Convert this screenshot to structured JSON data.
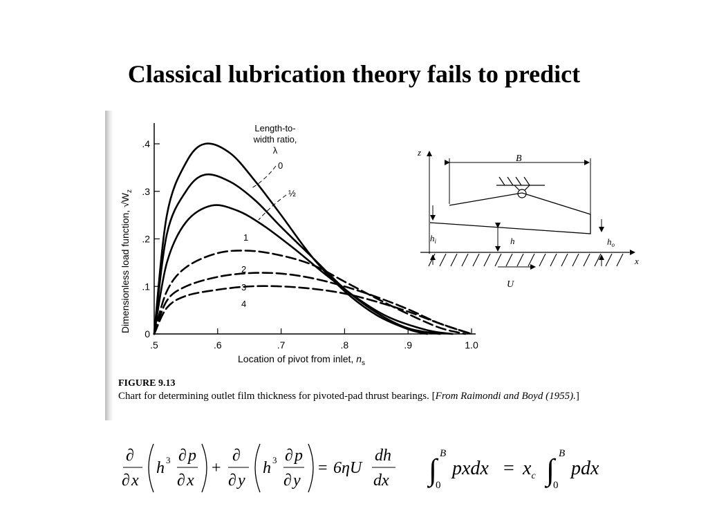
{
  "slide": {
    "title": "Classical lubrication theory fails to predict"
  },
  "chart_data": {
    "type": "line",
    "ylabel": "Dimensionless load function, √W",
    "ylabel_sub": "z",
    "xlabel_main": "Location of pivot from inlet, ",
    "xlabel_var": "n",
    "xlabel_sub": "s",
    "xlim": [
      0.5,
      1.0
    ],
    "ylim": [
      0,
      0.45
    ],
    "xticks": [
      ".5",
      ".6",
      ".7",
      ".8",
      ".9",
      "1.0"
    ],
    "yticks": [
      "0",
      ".1",
      ".2",
      ".3",
      ".4"
    ],
    "legend_title": [
      "Length-to-",
      "width ratio,",
      "λ"
    ],
    "series": [
      {
        "name": "0",
        "points": [
          [
            0.5,
            0
          ],
          [
            0.52,
            0.25
          ],
          [
            0.55,
            0.36
          ],
          [
            0.58,
            0.4
          ],
          [
            0.62,
            0.38
          ],
          [
            0.66,
            0.32
          ],
          [
            0.7,
            0.25
          ],
          [
            0.75,
            0.16
          ],
          [
            0.8,
            0.09
          ],
          [
            0.85,
            0.04
          ],
          [
            0.9,
            0.01
          ],
          [
            0.93,
            0
          ]
        ]
      },
      {
        "name": "½",
        "points": [
          [
            0.5,
            0
          ],
          [
            0.52,
            0.21
          ],
          [
            0.55,
            0.3
          ],
          [
            0.58,
            0.335
          ],
          [
            0.62,
            0.32
          ],
          [
            0.66,
            0.28
          ],
          [
            0.7,
            0.225
          ],
          [
            0.75,
            0.16
          ],
          [
            0.8,
            0.095
          ],
          [
            0.85,
            0.045
          ],
          [
            0.9,
            0.012
          ],
          [
            0.95,
            0
          ]
        ]
      },
      {
        "name": "1",
        "points": [
          [
            0.5,
            0
          ],
          [
            0.52,
            0.15
          ],
          [
            0.55,
            0.235
          ],
          [
            0.59,
            0.27
          ],
          [
            0.63,
            0.26
          ],
          [
            0.67,
            0.23
          ],
          [
            0.72,
            0.18
          ],
          [
            0.77,
            0.125
          ],
          [
            0.82,
            0.075
          ],
          [
            0.87,
            0.035
          ],
          [
            0.93,
            0.008
          ],
          [
            0.97,
            0
          ]
        ]
      },
      {
        "name": "2",
        "points": [
          [
            0.5,
            0
          ],
          [
            0.52,
            0.09
          ],
          [
            0.55,
            0.14
          ],
          [
            0.6,
            0.17
          ],
          [
            0.65,
            0.175
          ],
          [
            0.7,
            0.165
          ],
          [
            0.75,
            0.145
          ],
          [
            0.8,
            0.11
          ],
          [
            0.85,
            0.075
          ],
          [
            0.9,
            0.042
          ],
          [
            0.95,
            0.013
          ],
          [
            0.99,
            0
          ]
        ]
      },
      {
        "name": "3",
        "points": [
          [
            0.5,
            0
          ],
          [
            0.52,
            0.07
          ],
          [
            0.55,
            0.1
          ],
          [
            0.6,
            0.12
          ],
          [
            0.65,
            0.128
          ],
          [
            0.7,
            0.127
          ],
          [
            0.75,
            0.117
          ],
          [
            0.8,
            0.1
          ],
          [
            0.85,
            0.078
          ],
          [
            0.9,
            0.052
          ],
          [
            0.95,
            0.022
          ],
          [
            1.0,
            0
          ]
        ]
      },
      {
        "name": "4",
        "points": [
          [
            0.5,
            0
          ],
          [
            0.52,
            0.055
          ],
          [
            0.55,
            0.08
          ],
          [
            0.6,
            0.093
          ],
          [
            0.65,
            0.1
          ],
          [
            0.7,
            0.1
          ],
          [
            0.75,
            0.095
          ],
          [
            0.8,
            0.085
          ],
          [
            0.85,
            0.068
          ],
          [
            0.9,
            0.047
          ],
          [
            0.95,
            0.022
          ],
          [
            1.0,
            0
          ]
        ]
      }
    ]
  },
  "diagram": {
    "z_label": "z",
    "x_label": "x",
    "b_label": "B",
    "hi_label": "h",
    "hi_sub": "i",
    "h_label": "h",
    "ho_label": "h",
    "ho_sub": "o",
    "u_label": "U"
  },
  "caption": {
    "label": "FIGURE 9.13",
    "text": "Chart for determining outlet film thickness for pivoted-pad thrust bearings. [",
    "source": "From Raimondi and Boyd (1955).",
    "close": "]"
  },
  "equations": {
    "reynolds": {
      "d": "∂",
      "x": "x",
      "y": "y",
      "h3": "h",
      "cube": "3",
      "p": "p",
      "plus": "+",
      "equals": "=",
      "rhs": "6ηU",
      "dh": "dh",
      "dx": "dx"
    },
    "moment": {
      "int": "∫",
      "upper": "B",
      "lower": "0",
      "lhs": "pxdx",
      "equals": "=",
      "xc": "x",
      "xc_sub": "c",
      "rhs": "pdx"
    }
  }
}
